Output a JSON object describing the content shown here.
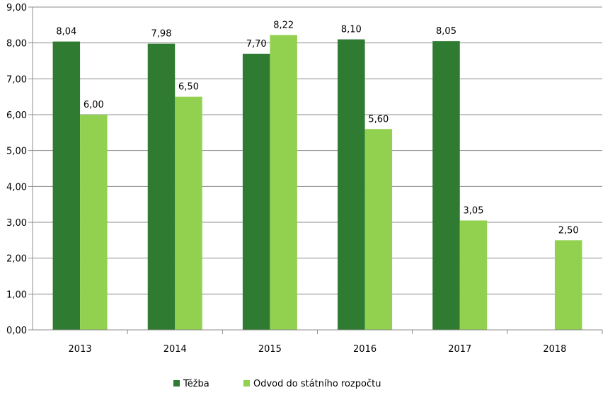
{
  "chart_data": {
    "type": "bar",
    "categories": [
      "2013",
      "2014",
      "2015",
      "2016",
      "2017",
      "2018"
    ],
    "series": [
      {
        "name": "Těžba",
        "values": [
          8.04,
          7.98,
          7.7,
          8.1,
          8.05,
          null
        ],
        "labels": [
          "8,04",
          "7,98",
          "7,70",
          "8,10",
          "8,05",
          null
        ],
        "color": "#2e7b31"
      },
      {
        "name": "Odvod do státního rozpočtu",
        "values": [
          6.0,
          6.5,
          8.22,
          5.6,
          3.05,
          2.5
        ],
        "labels": [
          "6,00",
          "6,50",
          "8,22",
          "5,60",
          "3,05",
          "2,50"
        ],
        "color": "#92d050"
      }
    ],
    "ylim": [
      0,
      9
    ],
    "yticks": [
      0,
      1,
      2,
      3,
      4,
      5,
      6,
      7,
      8,
      9
    ],
    "ytick_labels": [
      "0,00",
      "1,00",
      "2,00",
      "3,00",
      "4,00",
      "5,00",
      "6,00",
      "7,00",
      "8,00",
      "9,00"
    ],
    "grid": true,
    "legend": "bottom",
    "title": "",
    "xlabel": "",
    "ylabel": ""
  }
}
